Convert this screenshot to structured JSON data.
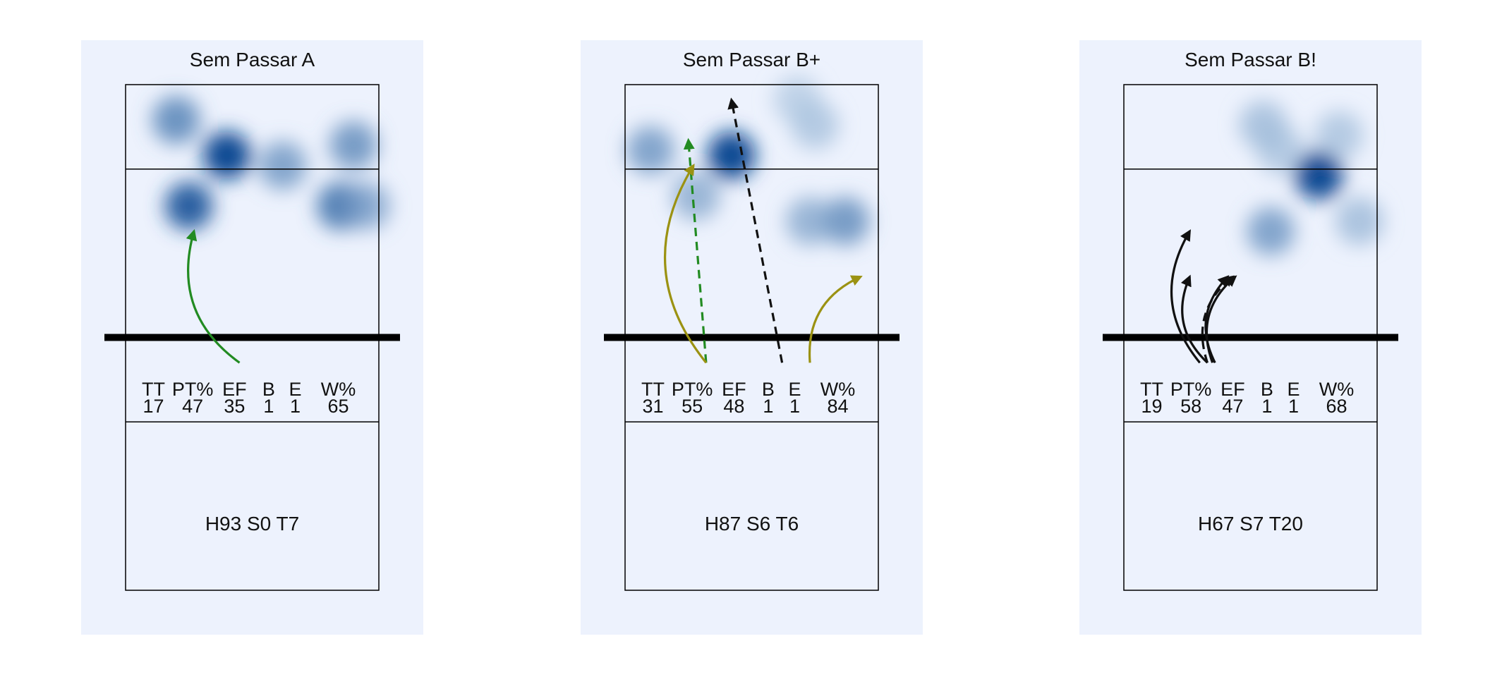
{
  "chart_data": [
    {
      "type": "heatmap",
      "title": "Sem Passar A",
      "footer": "H93 S0 T7",
      "stats": {
        "headers": [
          "TT",
          "PT%",
          "EF",
          "B",
          "E",
          "W%"
        ],
        "values": [
          "17",
          "47",
          "35",
          "1",
          "1",
          "65"
        ]
      },
      "hotspots": [
        {
          "x": 0.25,
          "y": 0.76,
          "intensity": 0.9
        },
        {
          "x": 0.4,
          "y": 0.86,
          "intensity": 1.0
        },
        {
          "x": 0.2,
          "y": 0.93,
          "intensity": 0.65
        },
        {
          "x": 0.62,
          "y": 0.84,
          "intensity": 0.55
        },
        {
          "x": 0.9,
          "y": 0.88,
          "intensity": 0.6
        },
        {
          "x": 0.85,
          "y": 0.76,
          "intensity": 0.75
        },
        {
          "x": 0.95,
          "y": 0.76,
          "intensity": 0.5
        }
      ],
      "attacks": [
        {
          "from": [
            0.45,
            0.45
          ],
          "to": [
            0.27,
            0.71
          ],
          "curve": "arc",
          "dashed": false,
          "color": "#228B22"
        }
      ]
    },
    {
      "type": "heatmap",
      "title": "Sem Passar B+",
      "footer": "H87 S6 T6",
      "stats": {
        "headers": [
          "TT",
          "PT%",
          "EF",
          "B",
          "E",
          "W%"
        ],
        "values": [
          "31",
          "55",
          "48",
          "1",
          "1",
          "84"
        ]
      },
      "hotspots": [
        {
          "x": 0.42,
          "y": 0.86,
          "intensity": 1.0
        },
        {
          "x": 0.1,
          "y": 0.87,
          "intensity": 0.55
        },
        {
          "x": 0.28,
          "y": 0.78,
          "intensity": 0.45
        },
        {
          "x": 0.87,
          "y": 0.73,
          "intensity": 0.6
        },
        {
          "x": 0.73,
          "y": 0.73,
          "intensity": 0.45
        },
        {
          "x": 0.75,
          "y": 0.92,
          "intensity": 0.3
        },
        {
          "x": 0.68,
          "y": 0.97,
          "intensity": 0.25
        }
      ],
      "attacks": [
        {
          "from": [
            0.32,
            0.45
          ],
          "to": [
            0.25,
            0.89
          ],
          "curve": "straight",
          "dashed": true,
          "color": "#228B22"
        },
        {
          "from": [
            0.62,
            0.45
          ],
          "to": [
            0.42,
            0.97
          ],
          "curve": "straight",
          "dashed": true,
          "color": "#111111"
        },
        {
          "from": [
            0.32,
            0.45
          ],
          "to": [
            0.27,
            0.84
          ],
          "curve": "arc",
          "dashed": false,
          "color": "#9B9212"
        },
        {
          "from": [
            0.73,
            0.45
          ],
          "to": [
            0.93,
            0.62
          ],
          "curve": "arc",
          "dashed": false,
          "color": "#9B9212"
        }
      ]
    },
    {
      "type": "heatmap",
      "title": "Sem Passar B!",
      "footer": "H67 S7 T20",
      "stats": {
        "headers": [
          "TT",
          "PT%",
          "EF",
          "B",
          "E",
          "W%"
        ],
        "values": [
          "19",
          "58",
          "47",
          "1",
          "1",
          "68"
        ]
      },
      "hotspots": [
        {
          "x": 0.77,
          "y": 0.82,
          "intensity": 1.0
        },
        {
          "x": 0.58,
          "y": 0.71,
          "intensity": 0.55
        },
        {
          "x": 0.55,
          "y": 0.92,
          "intensity": 0.35
        },
        {
          "x": 0.62,
          "y": 0.87,
          "intensity": 0.3
        },
        {
          "x": 0.93,
          "y": 0.73,
          "intensity": 0.35
        },
        {
          "x": 0.85,
          "y": 0.9,
          "intensity": 0.3
        }
      ],
      "attacks": [
        {
          "from": [
            0.3,
            0.45
          ],
          "to": [
            0.26,
            0.71
          ],
          "curve": "arc",
          "dashed": false,
          "color": "#111111"
        },
        {
          "from": [
            0.33,
            0.45
          ],
          "to": [
            0.26,
            0.62
          ],
          "curve": "arc",
          "dashed": false,
          "color": "#111111"
        },
        {
          "from": [
            0.36,
            0.45
          ],
          "to": [
            0.41,
            0.62
          ],
          "curve": "arc",
          "dashed": false,
          "color": "#111111"
        },
        {
          "from": [
            0.35,
            0.45
          ],
          "to": [
            0.44,
            0.62
          ],
          "curve": "arc",
          "dashed": false,
          "color": "#111111"
        },
        {
          "from": [
            0.33,
            0.45
          ],
          "to": [
            0.43,
            0.62
          ],
          "curve": "arc",
          "dashed": true,
          "color": "#111111"
        }
      ]
    }
  ],
  "colors": {
    "panel_background": "#EDF2FD",
    "heat_low": "#DCEAF6",
    "heat_high": "#0B4A93",
    "court_line": "#000000"
  }
}
